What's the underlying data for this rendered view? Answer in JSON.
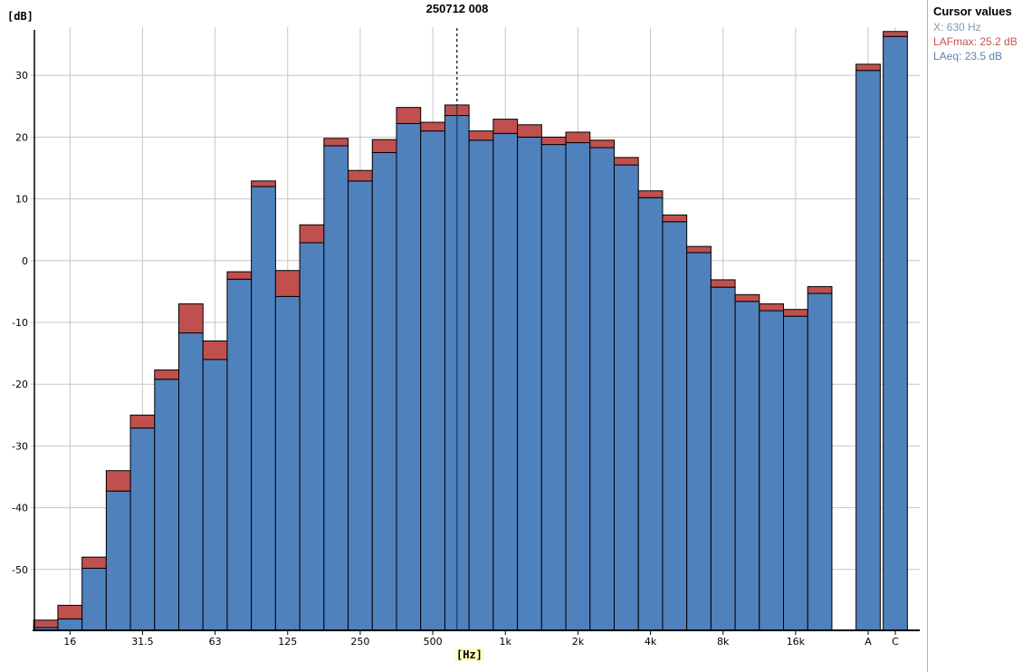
{
  "title": "250712 008",
  "cursor_panel": {
    "heading": "Cursor values",
    "x_line": "X: 630 Hz",
    "lafmax_line": "LAFmax: 25.2 dB",
    "laeq_line": "LAeq: 23.5 dB"
  },
  "chart_data": {
    "type": "bar",
    "title": "250712 008",
    "ylabel": "[dB]",
    "xlabel": "[Hz]",
    "ylim": [
      -60,
      38
    ],
    "grid": true,
    "yticks": [
      "30",
      "20",
      "10",
      "0",
      "-10",
      "-20",
      "-30",
      "-40",
      "-50"
    ],
    "xticks": [
      "16",
      "31.5",
      "63",
      "125",
      "250",
      "500",
      "1k",
      "2k",
      "4k",
      "8k",
      "16k"
    ],
    "series_names": [
      "LAFmax",
      "LAeq"
    ],
    "bands": [
      {
        "f": "12.5",
        "lafmax": -58.2,
        "laeq": -59.4
      },
      {
        "f": "16",
        "lafmax": -55.8,
        "laeq": -58.0
      },
      {
        "f": "20",
        "lafmax": -48.0,
        "laeq": -49.8
      },
      {
        "f": "25",
        "lafmax": -34.0,
        "laeq": -37.3
      },
      {
        "f": "31.5",
        "lafmax": -25.0,
        "laeq": -27.1
      },
      {
        "f": "40",
        "lafmax": -17.7,
        "laeq": -19.2
      },
      {
        "f": "50",
        "lafmax": -7.0,
        "laeq": -11.7
      },
      {
        "f": "63",
        "lafmax": -13.0,
        "laeq": -16.0
      },
      {
        "f": "80",
        "lafmax": -1.8,
        "laeq": -3.0
      },
      {
        "f": "100",
        "lafmax": 12.9,
        "laeq": 12.0
      },
      {
        "f": "125",
        "lafmax": -1.6,
        "laeq": -5.8
      },
      {
        "f": "160",
        "lafmax": 5.8,
        "laeq": 2.9
      },
      {
        "f": "200",
        "lafmax": 19.8,
        "laeq": 18.6
      },
      {
        "f": "250",
        "lafmax": 14.6,
        "laeq": 12.9
      },
      {
        "f": "315",
        "lafmax": 19.6,
        "laeq": 17.5
      },
      {
        "f": "400",
        "lafmax": 24.8,
        "laeq": 22.2
      },
      {
        "f": "500",
        "lafmax": 22.4,
        "laeq": 21.0
      },
      {
        "f": "630",
        "lafmax": 25.2,
        "laeq": 23.5
      },
      {
        "f": "800",
        "lafmax": 21.0,
        "laeq": 19.5
      },
      {
        "f": "1k",
        "lafmax": 22.9,
        "laeq": 20.6
      },
      {
        "f": "1.25k",
        "lafmax": 22.0,
        "laeq": 20.0
      },
      {
        "f": "1.6k",
        "lafmax": 20.0,
        "laeq": 18.8
      },
      {
        "f": "2k",
        "lafmax": 20.8,
        "laeq": 19.1
      },
      {
        "f": "2.5k",
        "lafmax": 19.5,
        "laeq": 18.3
      },
      {
        "f": "3.15k",
        "lafmax": 16.7,
        "laeq": 15.5
      },
      {
        "f": "4k",
        "lafmax": 11.3,
        "laeq": 10.2
      },
      {
        "f": "5k",
        "lafmax": 7.4,
        "laeq": 6.3
      },
      {
        "f": "6.3k",
        "lafmax": 2.3,
        "laeq": 1.3
      },
      {
        "f": "8k",
        "lafmax": -3.1,
        "laeq": -4.3
      },
      {
        "f": "10k",
        "lafmax": -5.5,
        "laeq": -6.6
      },
      {
        "f": "12.5k",
        "lafmax": -7.0,
        "laeq": -8.1
      },
      {
        "f": "16k",
        "lafmax": -7.9,
        "laeq": -9.0
      },
      {
        "f": "20k",
        "lafmax": -4.2,
        "laeq": -5.3
      }
    ],
    "broadband": [
      {
        "f": "A",
        "lafmax": 31.8,
        "laeq": 30.8
      },
      {
        "f": "C",
        "lafmax": 37.1,
        "laeq": 36.3
      }
    ],
    "cursor": {
      "band": "630",
      "lafmax": 25.2,
      "laeq": 23.5
    },
    "legend_position": "none",
    "colors": {
      "lafmax_bar": "#c0504d",
      "laeq_bar": "#4f81bd",
      "bar_outline": "#000000",
      "gridline": "#c6c6c6",
      "axis": "#000000",
      "cursor_line": "#000000",
      "cursor_inner_line": "#17375e",
      "hz_label_bg": "#ffffc2"
    }
  }
}
